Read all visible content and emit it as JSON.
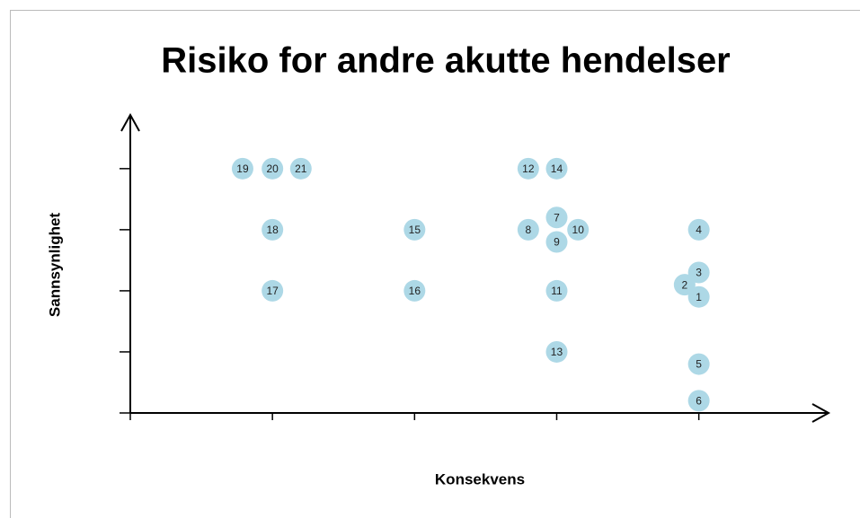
{
  "chart_data": {
    "type": "scatter",
    "title": "Risiko for andre akutte hendelser",
    "x_label": "Konsekvens",
    "y_label": "Sannsynlighet",
    "xlim": [
      0,
      4.9
    ],
    "ylim": [
      0,
      4.85
    ],
    "xticks": [
      0,
      1,
      2,
      3,
      4
    ],
    "yticks": [
      0,
      1,
      2,
      3,
      4
    ],
    "series": [
      {
        "color": "#add8e6",
        "labels": [
          "19",
          "20",
          "21",
          "12",
          "14",
          "18",
          "15",
          "8",
          "7",
          "10",
          "9",
          "4",
          "3",
          "2",
          "1",
          "17",
          "16",
          "11",
          "13",
          "5",
          "6"
        ],
        "x": [
          0.79,
          1,
          1.2,
          2.8,
          3,
          1,
          2,
          2.8,
          3,
          3.15,
          3,
          4,
          4,
          3.9,
          4,
          1,
          2,
          3,
          3,
          4,
          4
        ],
        "values": [
          4,
          4,
          4,
          4,
          4,
          3,
          3,
          3,
          3.2,
          3,
          2.8,
          3,
          2.3,
          2.1,
          1.9,
          2,
          2,
          2,
          1,
          0.8,
          0.2
        ]
      }
    ]
  }
}
